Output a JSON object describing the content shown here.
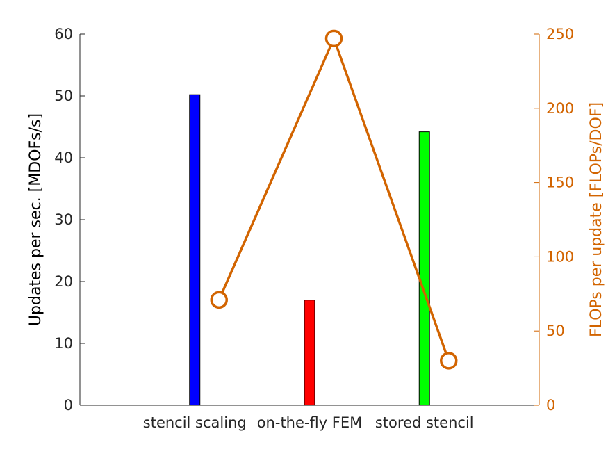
{
  "chart_data": {
    "type": "bar",
    "categories": [
      "stencil scaling",
      "on-the-fly FEM",
      "stored stencil"
    ],
    "bar_colors": [
      "#0000ff",
      "#ff0000",
      "#00ff00"
    ],
    "left_axis": {
      "label": "Updates per sec. [MDOFs/s]",
      "ylim": [
        0,
        60
      ],
      "ticks": [
        0,
        10,
        20,
        30,
        40,
        50,
        60
      ],
      "color": "#262626"
    },
    "right_axis": {
      "label": "FLOPs per update [FLOPs/DOF]",
      "ylim": [
        0,
        250
      ],
      "ticks": [
        0,
        50,
        100,
        150,
        200,
        250
      ],
      "color": "#d26400"
    },
    "series": [
      {
        "type": "bar",
        "axis": "left",
        "values": [
          50.2,
          17,
          44.2
        ]
      },
      {
        "type": "line",
        "axis": "right",
        "marker": "circle",
        "color": "#d26400",
        "values": [
          71,
          247,
          30
        ]
      }
    ],
    "grid": false,
    "legend": "none"
  }
}
